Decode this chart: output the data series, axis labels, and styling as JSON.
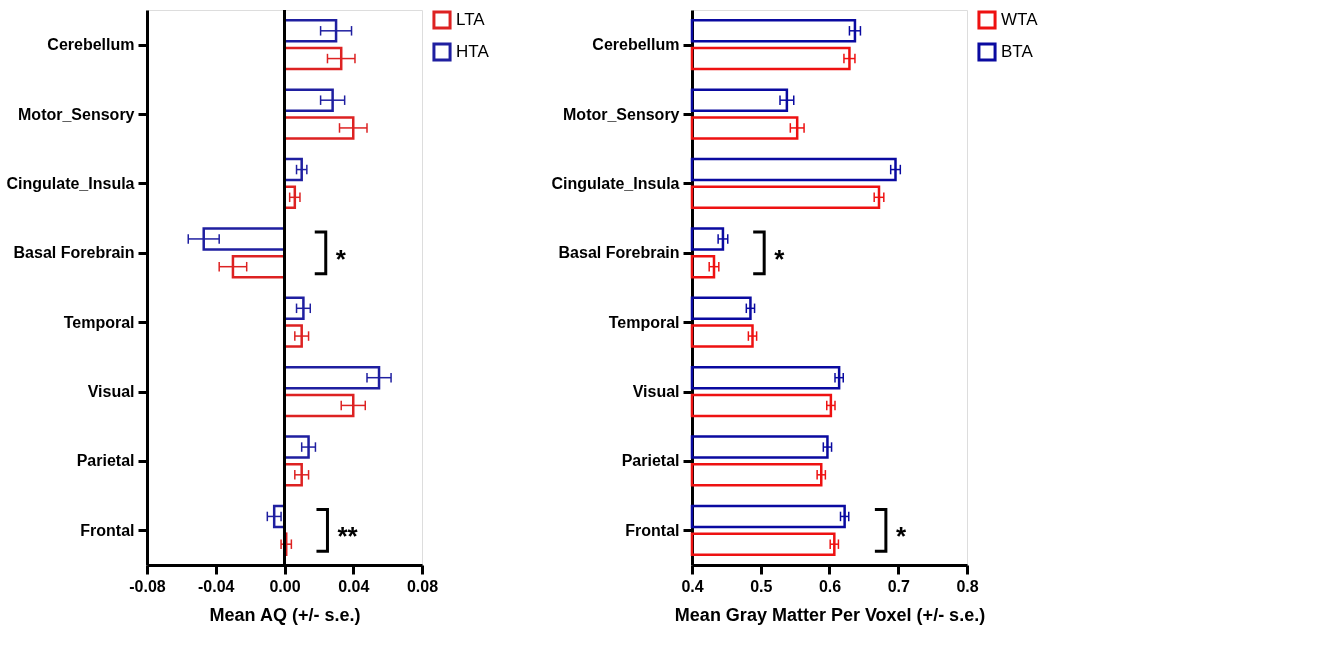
{
  "chart_data": [
    {
      "type": "bar",
      "orientation": "horizontal",
      "categories": [
        "Cerebellum",
        "Motor_Sensory",
        "Cingulate_Insula",
        "Basal Forebrain",
        "Temporal",
        "Visual",
        "Parietal",
        "Frontal"
      ],
      "xlabel": "Mean AQ (+/- s.e.)",
      "xlim": [
        -0.08,
        0.08
      ],
      "xticks": [
        {
          "value": -0.08,
          "label": "-0.08"
        },
        {
          "value": -0.04,
          "label": "-0.04"
        },
        {
          "value": 0,
          "label": "0.00"
        },
        {
          "value": 0.04,
          "label": "0.04"
        },
        {
          "value": 0.08,
          "label": "0.08"
        }
      ],
      "grid": false,
      "legend": "top right",
      "series": [
        {
          "name": "LTA",
          "color": "#dd2222",
          "values": [
            0.033,
            0.04,
            0.006,
            -0.03,
            0.01,
            0.04,
            0.01,
            0.001
          ],
          "errors": [
            0.008,
            0.008,
            0.003,
            0.008,
            0.004,
            0.007,
            0.004,
            0.003
          ]
        },
        {
          "name": "HTA",
          "color": "#1f1fa0",
          "values": [
            0.03,
            0.028,
            0.01,
            -0.047,
            0.011,
            0.055,
            0.014,
            -0.006
          ],
          "errors": [
            0.009,
            0.007,
            0.003,
            0.009,
            0.004,
            0.007,
            0.004,
            0.004
          ]
        }
      ],
      "ref_lines": [
        {
          "axis": "x",
          "value": 0,
          "color": "#000000"
        }
      ],
      "annotations": [
        {
          "text": "*",
          "x": 0,
          "y": "Basal Forebrain"
        },
        {
          "text": "**",
          "x": 0.001,
          "y": "Frontal"
        }
      ]
    },
    {
      "type": "bar",
      "orientation": "horizontal",
      "categories": [
        "Cerebellum",
        "Motor_Sensory",
        "Cingulate_Insula",
        "Basal Forebrain",
        "Temporal",
        "Visual",
        "Parietal",
        "Frontal"
      ],
      "xlabel": "Mean Gray Matter Per Voxel (+/- s.e.)",
      "xlim": [
        0.4,
        0.8
      ],
      "xticks": [
        0.4,
        0.5,
        0.6,
        0.7,
        0.8
      ],
      "grid": false,
      "legend": "top right",
      "series": [
        {
          "name": "WTA",
          "color": "#ee1111",
          "values": [
            0.629,
            0.553,
            0.672,
            0.432,
            0.488,
            0.602,
            0.588,
            0.607
          ],
          "errors": [
            0.008,
            0.01,
            0.007,
            0.007,
            0.006,
            0.006,
            0.006,
            0.006
          ]
        },
        {
          "name": "BTA",
          "color": "#0a0aa0",
          "values": [
            0.637,
            0.538,
            0.696,
            0.445,
            0.485,
            0.614,
            0.597,
            0.622
          ],
          "errors": [
            0.008,
            0.01,
            0.007,
            0.007,
            0.006,
            0.006,
            0.006,
            0.006
          ]
        }
      ],
      "annotations": [
        {
          "text": "*",
          "x": 0.445,
          "y": "Basal Forebrain"
        },
        {
          "text": "*",
          "x": 0.622,
          "y": "Frontal"
        }
      ]
    }
  ]
}
